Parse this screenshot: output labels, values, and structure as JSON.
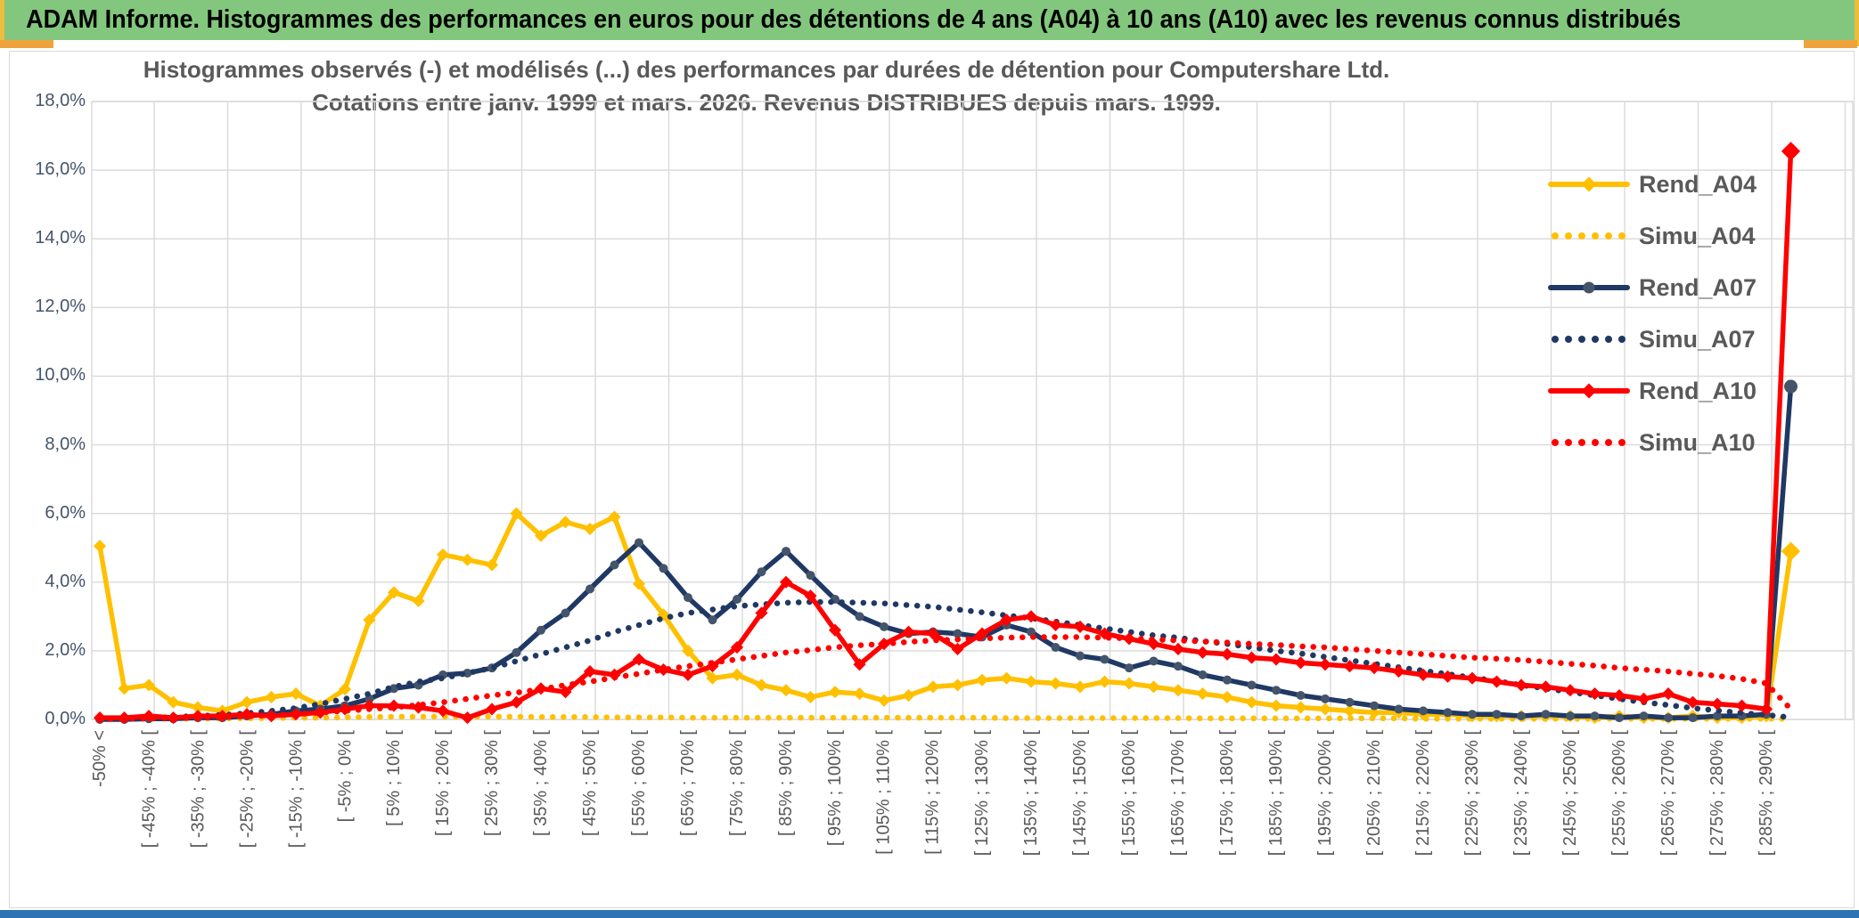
{
  "banner": {
    "title": "ADAM Informe. Histogrammes des performances en euros pour des détentions de 4 ans (A04) à 10 ans (A10) avec les revenus connus distribués",
    "bg_color": "#82C77D",
    "accent_orange": "#F0A33C",
    "accent_yellow": "#EDBE3B",
    "bottom_bar_color": "#2E74B5"
  },
  "chart_data": {
    "type": "line",
    "title_line1": "Histogrammes observés (-) et modélisés (...) des performances par durées de détention pour Computershare Ltd.",
    "title_line2": "Cotations entre janv. 1999 et mars. 2026. Revenus DISTRIBUES depuis mars. 1999.",
    "y_ticks": [
      "18,0%",
      "16,0%",
      "14,0%",
      "12,0%",
      "10,0%",
      "8,0%",
      "6,0%",
      "4,0%",
      "2,0%",
      "0,0%"
    ],
    "y_tick_values": [
      18,
      16,
      14,
      12,
      10,
      8,
      6,
      4,
      2,
      0
    ],
    "ylim": [
      0,
      18
    ],
    "grid": true,
    "legend_position": "right-inside",
    "bins_total": 70,
    "label_every_n_bins": 2,
    "categories": [
      "-50% <",
      "[ -45% ; -40% [",
      "[ -35% ; -30% [",
      "[ -25% ; -20% [",
      "[ -15% ; -10% [",
      "[ -5% ; 0% [",
      "[ 5% ; 10% [",
      "[ 15% ; 20% [",
      "[ 25% ; 30% [",
      "[ 35% ; 40% [",
      "[ 45% ; 50% [",
      "[ 55% ; 60% [",
      "[ 65% ; 70% [",
      "[ 75% ; 80% [",
      "[ 85% ; 90% [",
      "[ 95% ; 100% [",
      "[ 105% ; 110% [",
      "[ 115% ; 120% [",
      "[ 125% ; 130% [",
      "[ 135% ; 140% [",
      "[ 145% ; 150% [",
      "[ 155% ; 160% [",
      "[ 165% ; 170% [",
      "[ 175% ; 180% [",
      "[ 185% ; 190% [",
      "[ 195% ; 200% [",
      "[ 205% ; 210% [",
      "[ 215% ; 220% [",
      "[ 225% ; 230% [",
      "[ 235% ; 240% [",
      "[ 245% ; 250% [",
      "[ 255% ; 260% [",
      "[ 265% ; 270% [",
      "[ 275% ; 280% [",
      "[ 285% ; 290% ["
    ],
    "series": [
      {
        "name": "Rend_A04",
        "style": "solid",
        "color": "#FFC000",
        "marker": "diamond",
        "values": [
          5.05,
          0.9,
          1.0,
          0.5,
          0.35,
          0.25,
          0.5,
          0.65,
          0.75,
          0.4,
          0.88,
          2.9,
          3.7,
          3.45,
          4.8,
          4.65,
          4.5,
          6.0,
          5.35,
          5.75,
          5.55,
          5.9,
          3.95,
          3.05,
          2.0,
          1.2,
          1.3,
          1.0,
          0.85,
          0.65,
          0.8,
          0.75,
          0.55,
          0.7,
          0.95,
          1.0,
          1.15,
          1.2,
          1.1,
          1.05,
          0.95,
          1.1,
          1.05,
          0.95,
          0.85,
          0.75,
          0.65,
          0.5,
          0.4,
          0.35,
          0.3,
          0.25,
          0.2,
          0.2,
          0.15,
          0.15,
          0.1,
          0.1,
          0.1,
          0.1,
          0.1,
          0.05,
          0.1,
          0.05,
          0.05,
          0.1,
          0.05,
          0.05,
          0.1,
          4.9
        ]
      },
      {
        "name": "Simu_A04",
        "style": "dotted",
        "color": "#FFC000",
        "marker": "none",
        "values": [
          0.02,
          0.02,
          0.02,
          0.02,
          0.02,
          0.03,
          0.03,
          0.04,
          0.05,
          0.05,
          0.06,
          0.07,
          0.08,
          0.08,
          0.08,
          0.08,
          0.08,
          0.08,
          0.07,
          0.07,
          0.07,
          0.06,
          0.06,
          0.06,
          0.05,
          0.05,
          0.05,
          0.05,
          0.05,
          0.05,
          0.05,
          0.05,
          0.05,
          0.05,
          0.05,
          0.05,
          0.05,
          0.04,
          0.04,
          0.04,
          0.04,
          0.04,
          0.04,
          0.04,
          0.04,
          0.03,
          0.03,
          0.03,
          0.03,
          0.03,
          0.03,
          0.03,
          0.03,
          0.03,
          0.02,
          0.02,
          0.02,
          0.02,
          0.02,
          0.02,
          0.02,
          0.02,
          0.02,
          0.02,
          0.02,
          0.02,
          0.02,
          0.02,
          0.02,
          0.02
        ]
      },
      {
        "name": "Rend_A07",
        "style": "solid",
        "color": "#1F3864",
        "marker": "circle",
        "marker_color": "#44546A",
        "values": [
          0.0,
          0.0,
          0.02,
          0.02,
          0.05,
          0.05,
          0.1,
          0.15,
          0.25,
          0.3,
          0.4,
          0.6,
          0.9,
          1.0,
          1.3,
          1.35,
          1.5,
          1.95,
          2.6,
          3.1,
          3.8,
          4.5,
          5.15,
          4.4,
          3.55,
          2.9,
          3.5,
          4.3,
          4.9,
          4.2,
          3.5,
          3.0,
          2.7,
          2.5,
          2.55,
          2.5,
          2.4,
          2.75,
          2.55,
          2.1,
          1.85,
          1.75,
          1.5,
          1.7,
          1.55,
          1.3,
          1.15,
          1.0,
          0.85,
          0.7,
          0.6,
          0.5,
          0.4,
          0.3,
          0.25,
          0.2,
          0.15,
          0.15,
          0.1,
          0.15,
          0.1,
          0.1,
          0.05,
          0.1,
          0.05,
          0.05,
          0.1,
          0.1,
          0.15,
          9.7
        ]
      },
      {
        "name": "Simu_A07",
        "style": "dotted",
        "color": "#1F3864",
        "marker": "none",
        "values": [
          0.02,
          0.03,
          0.05,
          0.07,
          0.1,
          0.13,
          0.18,
          0.25,
          0.33,
          0.45,
          0.6,
          0.75,
          0.95,
          1.1,
          1.2,
          1.35,
          1.5,
          1.7,
          1.9,
          2.1,
          2.3,
          2.55,
          2.75,
          2.95,
          3.1,
          3.2,
          3.3,
          3.35,
          3.4,
          3.42,
          3.42,
          3.4,
          3.38,
          3.33,
          3.28,
          3.2,
          3.12,
          3.03,
          2.95,
          2.85,
          2.75,
          2.65,
          2.55,
          2.45,
          2.38,
          2.28,
          2.2,
          2.1,
          2.0,
          1.92,
          1.82,
          1.72,
          1.62,
          1.52,
          1.42,
          1.32,
          1.22,
          1.12,
          1.0,
          0.9,
          0.8,
          0.7,
          0.6,
          0.5,
          0.42,
          0.33,
          0.26,
          0.19,
          0.13,
          0.06
        ]
      },
      {
        "name": "Rend_A10",
        "style": "solid",
        "color": "#FF0000",
        "marker": "diamond",
        "values": [
          0.05,
          0.05,
          0.1,
          0.05,
          0.1,
          0.1,
          0.15,
          0.1,
          0.15,
          0.2,
          0.3,
          0.4,
          0.4,
          0.35,
          0.25,
          0.05,
          0.3,
          0.5,
          0.9,
          0.8,
          1.4,
          1.3,
          1.75,
          1.45,
          1.3,
          1.55,
          2.1,
          3.1,
          4.0,
          3.6,
          2.6,
          1.6,
          2.2,
          2.55,
          2.5,
          2.05,
          2.5,
          2.9,
          3.0,
          2.75,
          2.7,
          2.5,
          2.35,
          2.2,
          2.05,
          1.95,
          1.9,
          1.8,
          1.75,
          1.65,
          1.6,
          1.55,
          1.5,
          1.4,
          1.3,
          1.25,
          1.2,
          1.1,
          1.0,
          0.95,
          0.85,
          0.75,
          0.7,
          0.6,
          0.75,
          0.5,
          0.45,
          0.4,
          0.3,
          16.55
        ]
      },
      {
        "name": "Simu_A10",
        "style": "dotted",
        "color": "#FF0000",
        "marker": "none",
        "values": [
          0.01,
          0.02,
          0.03,
          0.04,
          0.05,
          0.07,
          0.09,
          0.12,
          0.15,
          0.2,
          0.25,
          0.3,
          0.35,
          0.42,
          0.5,
          0.6,
          0.7,
          0.78,
          0.88,
          1.0,
          1.1,
          1.22,
          1.33,
          1.45,
          1.55,
          1.65,
          1.75,
          1.85,
          1.95,
          2.02,
          2.1,
          2.16,
          2.2,
          2.26,
          2.3,
          2.33,
          2.36,
          2.38,
          2.4,
          2.4,
          2.4,
          2.38,
          2.36,
          2.33,
          2.3,
          2.27,
          2.24,
          2.2,
          2.17,
          2.13,
          2.1,
          2.05,
          2.0,
          1.95,
          1.9,
          1.85,
          1.8,
          1.77,
          1.73,
          1.68,
          1.62,
          1.57,
          1.5,
          1.45,
          1.4,
          1.33,
          1.27,
          1.18,
          1.05,
          0.3
        ]
      }
    ]
  },
  "colors": {
    "grid": "#D9D9D9",
    "plot_border": "#D9D9D9",
    "axis_text": "#44546A",
    "category_text": "#595959",
    "title_text": "#595959"
  }
}
